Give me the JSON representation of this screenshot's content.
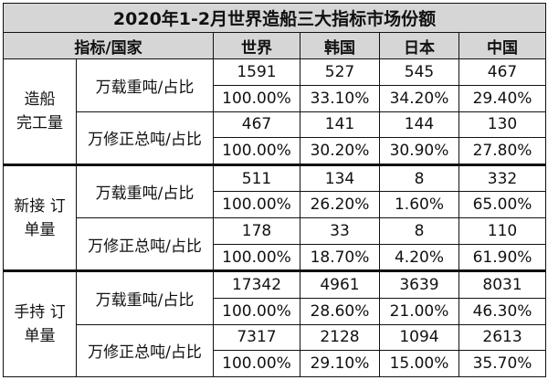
{
  "title": "2020年1-2月世界造船三大指标市场份额",
  "header": {
    "indicator": "指标/国家",
    "cols": [
      "世界",
      "韩国",
      "日本",
      "中国"
    ]
  },
  "groups": [
    {
      "name_lines": [
        "造船",
        "完工量"
      ],
      "rows": [
        {
          "unit": "万载重吨/占比",
          "values": [
            "1591",
            "527",
            "545",
            "467"
          ],
          "shares": [
            "100.00%",
            "33.10%",
            "34.20%",
            "29.40%"
          ]
        },
        {
          "unit": "万修正总吨/占比",
          "values": [
            "467",
            "141",
            "144",
            "130"
          ],
          "shares": [
            "100.00%",
            "30.20%",
            "30.90%",
            "27.80%"
          ]
        }
      ]
    },
    {
      "name_lines": [
        "新接 订",
        "单量"
      ],
      "rows": [
        {
          "unit": "万载重吨/占比",
          "values": [
            "511",
            "134",
            "8",
            "332"
          ],
          "shares": [
            "100.00%",
            "26.20%",
            "1.60%",
            "65.00%"
          ]
        },
        {
          "unit": "万修正总吨/占比",
          "values": [
            "178",
            "33",
            "8",
            "110"
          ],
          "shares": [
            "100.00%",
            "18.70%",
            "4.20%",
            "61.90%"
          ]
        }
      ]
    },
    {
      "name_lines": [
        "手持 订",
        "单量"
      ],
      "rows": [
        {
          "unit": "万载重吨/占比",
          "values": [
            "17342",
            "4961",
            "3639",
            "8031"
          ],
          "shares": [
            "100.00%",
            "28.60%",
            "21.00%",
            "46.30%"
          ]
        },
        {
          "unit": "万修正总吨/占比",
          "values": [
            "7317",
            "2128",
            "1094",
            "2613"
          ],
          "shares": [
            "100.00%",
            "29.10%",
            "15.00%",
            "35.70%"
          ]
        }
      ]
    }
  ]
}
